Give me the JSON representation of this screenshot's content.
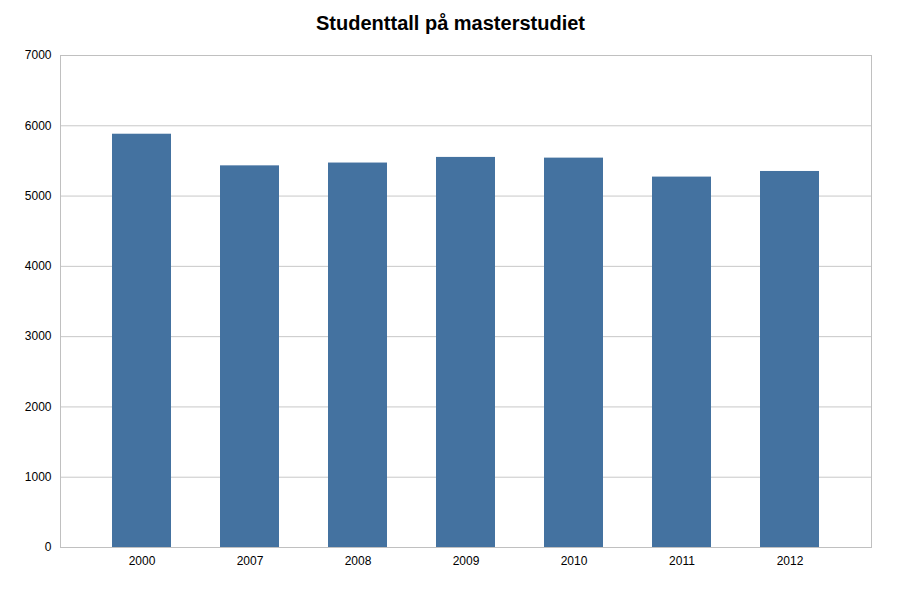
{
  "chart_data": {
    "type": "bar",
    "title": "Studenttall på masterstudiet",
    "categories": [
      "2000",
      "2007",
      "2008",
      "2009",
      "2010",
      "2011",
      "2012"
    ],
    "values": [
      5880,
      5430,
      5470,
      5550,
      5540,
      5270,
      5350
    ],
    "color": "#4472a0",
    "ylim": [
      0,
      7000
    ],
    "yticks": [
      0,
      1000,
      2000,
      3000,
      4000,
      5000,
      6000,
      7000
    ],
    "grid": true
  }
}
